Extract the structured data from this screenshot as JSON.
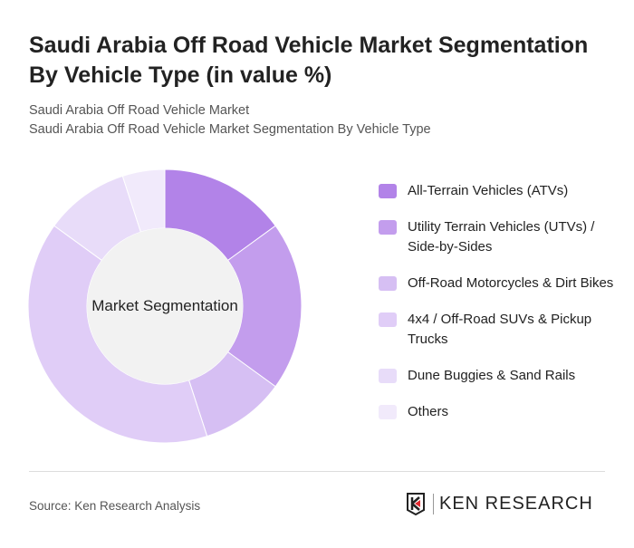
{
  "title": "Saudi Arabia Off Road Vehicle Market Segmentation By Vehicle Type (in value %)",
  "subtitle1": "Saudi Arabia Off Road Vehicle Market",
  "subtitle2": "Saudi Arabia Off Road Vehicle Market Segmentation By Vehicle Type",
  "source": "Source: Ken Research Analysis",
  "logo_text": "KEN RESEARCH",
  "chart_data": {
    "type": "pie",
    "variant": "donut",
    "center_label": "Market Segmentation",
    "legend_position": "right",
    "categories": [
      "All-Terrain Vehicles (ATVs)",
      "Utility Terrain Vehicles (UTVs) / Side-by-Sides",
      "Off-Road Motorcycles & Dirt Bikes",
      "4x4 / Off-Road SUVs & Pickup Trucks",
      "Dune Buggies & Sand Rails",
      "Others"
    ],
    "values": [
      15,
      20,
      10,
      40,
      10,
      5
    ],
    "colors": [
      "#b283e8",
      "#c39ded",
      "#d6bff3",
      "#e0cdf7",
      "#e8dcf9",
      "#f1eafb"
    ]
  }
}
